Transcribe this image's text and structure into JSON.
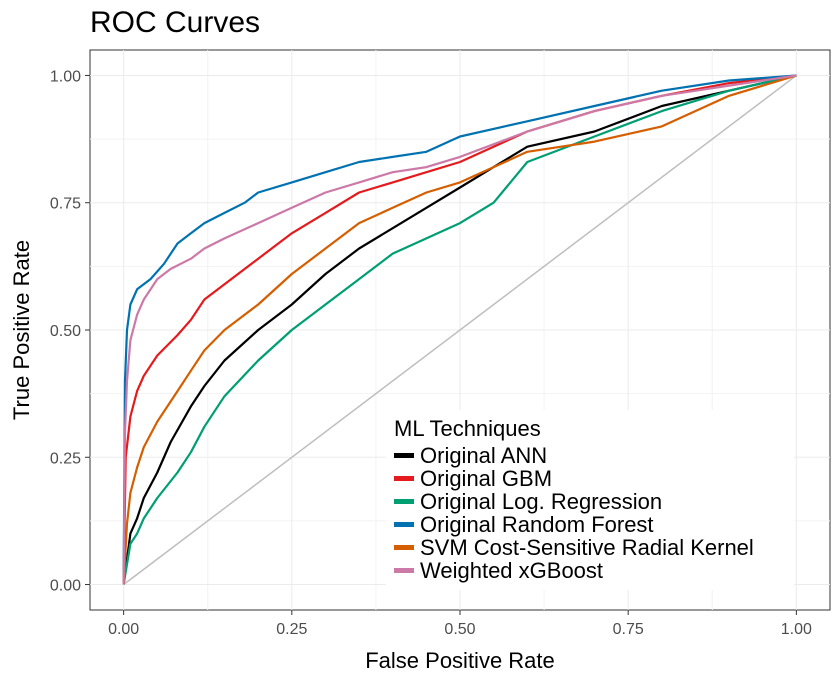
{
  "chart_data": {
    "type": "line",
    "title": "ROC Curves",
    "xlabel": "False Positive Rate",
    "ylabel": "True Positive Rate",
    "xlim": [
      -0.05,
      1.05
    ],
    "ylim": [
      -0.05,
      1.05
    ],
    "x_ticks": [
      "0.00",
      "0.25",
      "0.50",
      "0.75",
      "1.00"
    ],
    "y_ticks": [
      "0.00",
      "0.25",
      "0.50",
      "0.75",
      "1.00"
    ],
    "grid": true,
    "legend_title": "ML Techniques",
    "legend_position": "bottom-right",
    "reference_line": {
      "x": [
        0,
        1
      ],
      "y": [
        0,
        1
      ],
      "color": "#bebebe"
    },
    "series": [
      {
        "name": "Original ANN",
        "color": "#000000",
        "x": [
          0,
          0.01,
          0.02,
          0.03,
          0.05,
          0.07,
          0.1,
          0.12,
          0.15,
          0.2,
          0.25,
          0.3,
          0.35,
          0.4,
          0.45,
          0.5,
          0.55,
          0.6,
          0.7,
          0.8,
          0.9,
          1
        ],
        "y": [
          0,
          0.1,
          0.13,
          0.17,
          0.22,
          0.28,
          0.35,
          0.39,
          0.44,
          0.5,
          0.55,
          0.61,
          0.66,
          0.7,
          0.74,
          0.78,
          0.82,
          0.86,
          0.89,
          0.94,
          0.97,
          1
        ]
      },
      {
        "name": "Original GBM",
        "color": "#e41a1c",
        "x": [
          0,
          0.003,
          0.01,
          0.02,
          0.03,
          0.05,
          0.08,
          0.1,
          0.12,
          0.15,
          0.2,
          0.25,
          0.3,
          0.35,
          0.4,
          0.45,
          0.5,
          0.55,
          0.6,
          0.7,
          0.8,
          0.9,
          1
        ],
        "y": [
          0,
          0.25,
          0.33,
          0.38,
          0.41,
          0.45,
          0.49,
          0.52,
          0.56,
          0.59,
          0.64,
          0.69,
          0.73,
          0.77,
          0.79,
          0.81,
          0.83,
          0.86,
          0.89,
          0.93,
          0.96,
          0.985,
          1
        ]
      },
      {
        "name": "Original Log. Regression",
        "color": "#009e73",
        "x": [
          0,
          0.01,
          0.02,
          0.03,
          0.05,
          0.08,
          0.1,
          0.12,
          0.15,
          0.2,
          0.25,
          0.3,
          0.35,
          0.4,
          0.45,
          0.5,
          0.55,
          0.6,
          0.7,
          0.8,
          0.9,
          1
        ],
        "y": [
          0,
          0.08,
          0.1,
          0.13,
          0.17,
          0.22,
          0.26,
          0.31,
          0.37,
          0.44,
          0.5,
          0.55,
          0.6,
          0.65,
          0.68,
          0.71,
          0.75,
          0.83,
          0.88,
          0.93,
          0.97,
          1
        ]
      },
      {
        "name": "Original Random Forest",
        "color": "#0072b2",
        "x": [
          0,
          0.002,
          0.005,
          0.01,
          0.02,
          0.04,
          0.06,
          0.08,
          0.1,
          0.12,
          0.15,
          0.18,
          0.2,
          0.25,
          0.3,
          0.35,
          0.4,
          0.45,
          0.5,
          0.6,
          0.7,
          0.8,
          0.9,
          1
        ],
        "y": [
          0,
          0.4,
          0.5,
          0.55,
          0.58,
          0.6,
          0.63,
          0.67,
          0.69,
          0.71,
          0.73,
          0.75,
          0.77,
          0.79,
          0.81,
          0.83,
          0.84,
          0.85,
          0.88,
          0.91,
          0.94,
          0.97,
          0.99,
          1
        ]
      },
      {
        "name": "SVM Cost-Sensitive Radial Kernel",
        "color": "#d55e00",
        "x": [
          0,
          0.005,
          0.01,
          0.02,
          0.03,
          0.05,
          0.08,
          0.1,
          0.12,
          0.15,
          0.2,
          0.25,
          0.3,
          0.35,
          0.4,
          0.45,
          0.5,
          0.55,
          0.6,
          0.7,
          0.8,
          0.9,
          1
        ],
        "y": [
          0,
          0.12,
          0.18,
          0.23,
          0.27,
          0.32,
          0.38,
          0.42,
          0.46,
          0.5,
          0.55,
          0.61,
          0.66,
          0.71,
          0.74,
          0.77,
          0.79,
          0.82,
          0.85,
          0.87,
          0.9,
          0.96,
          1
        ]
      },
      {
        "name": "Weighted xGBoost",
        "color": "#cc79a7",
        "x": [
          0,
          0.002,
          0.005,
          0.01,
          0.02,
          0.03,
          0.05,
          0.07,
          0.1,
          0.12,
          0.15,
          0.2,
          0.25,
          0.3,
          0.35,
          0.4,
          0.45,
          0.5,
          0.6,
          0.7,
          0.8,
          0.9,
          1
        ],
        "y": [
          0,
          0.3,
          0.4,
          0.48,
          0.53,
          0.56,
          0.6,
          0.62,
          0.64,
          0.66,
          0.68,
          0.71,
          0.74,
          0.77,
          0.79,
          0.81,
          0.82,
          0.84,
          0.89,
          0.93,
          0.96,
          0.98,
          1
        ]
      }
    ]
  }
}
